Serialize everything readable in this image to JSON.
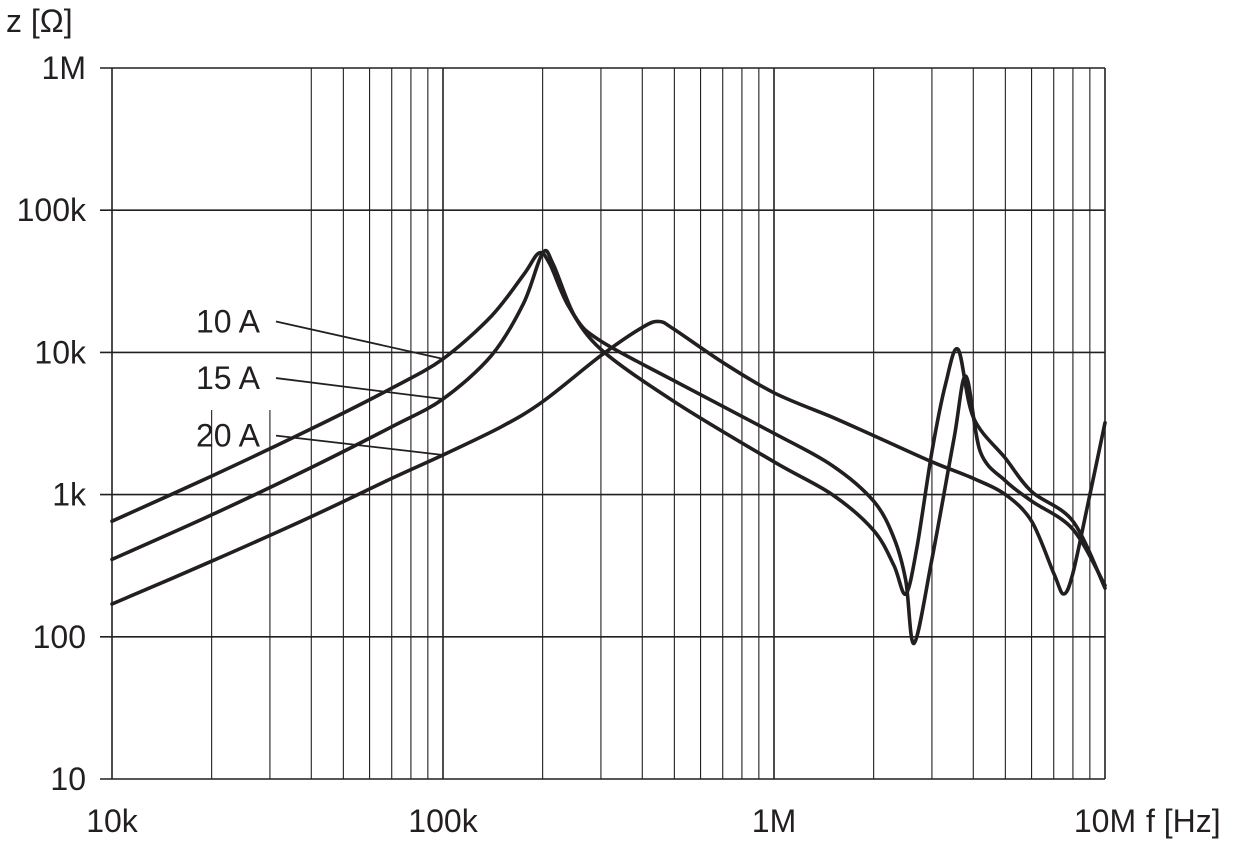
{
  "chart_data": {
    "type": "line",
    "xscale": "log",
    "yscale": "log",
    "xlabel": "f [Hz]",
    "ylabel": "z [Ω]",
    "xlim": [
      10000,
      10000000
    ],
    "ylim": [
      10,
      1000000
    ],
    "x_ticks": [
      {
        "value": 10000,
        "label": "10k"
      },
      {
        "value": 100000,
        "label": "100k"
      },
      {
        "value": 1000000,
        "label": "1M"
      },
      {
        "value": 10000000,
        "label": "10M"
      }
    ],
    "y_ticks": [
      {
        "value": 10,
        "label": "10"
      },
      {
        "value": 100,
        "label": "100"
      },
      {
        "value": 1000,
        "label": "1k"
      },
      {
        "value": 10000,
        "label": "10k"
      },
      {
        "value": 100000,
        "label": "100k"
      },
      {
        "value": 1000000,
        "label": "1M"
      }
    ],
    "grid": true,
    "series": [
      {
        "name": "10 A",
        "x": [
          10000,
          20000,
          40000,
          70000,
          100000,
          140000,
          175000,
          195000,
          210000,
          240000,
          300000,
          500000,
          1000000,
          1500000,
          2000000,
          2300000,
          2500000,
          2700000,
          3000000,
          3300000,
          3600000,
          4000000,
          5000000,
          6000000,
          8000000,
          10000000
        ],
        "y": [
          650,
          1350,
          2900,
          5600,
          9000,
          18000,
          35000,
          50000,
          42000,
          21000,
          10500,
          4500,
          1700,
          1000,
          560,
          320,
          200,
          420,
          2000,
          6000,
          10500,
          3500,
          1800,
          1050,
          650,
          220
        ]
      },
      {
        "name": "15 A",
        "x": [
          10000,
          20000,
          40000,
          70000,
          100000,
          140000,
          175000,
          200000,
          215000,
          250000,
          300000,
          500000,
          1000000,
          1500000,
          2000000,
          2300000,
          2500000,
          2650000,
          3000000,
          3500000,
          3800000,
          4200000,
          5000000,
          6000000,
          8000000,
          10000000
        ],
        "y": [
          350,
          720,
          1550,
          3000,
          4700,
          9500,
          22000,
          50000,
          42000,
          18000,
          12000,
          6300,
          2700,
          1600,
          900,
          500,
          250,
          90,
          350,
          2500,
          6800,
          2000,
          1250,
          900,
          570,
          230
        ]
      },
      {
        "name": "20 A",
        "x": [
          10000,
          20000,
          40000,
          70000,
          100000,
          150000,
          200000,
          300000,
          400000,
          450000,
          500000,
          700000,
          1000000,
          1500000,
          2000000,
          3000000,
          4000000,
          5000000,
          6000000,
          7000000,
          7500000,
          8000000,
          9000000,
          10000000
        ],
        "y": [
          170,
          340,
          700,
          1300,
          1900,
          3000,
          4500,
          9500,
          15000,
          16500,
          14500,
          8500,
          5200,
          3500,
          2600,
          1700,
          1300,
          1000,
          650,
          280,
          200,
          280,
          1000,
          3200
        ]
      }
    ],
    "legend": [
      {
        "label": "10 A",
        "text_x": 100000,
        "text_y": 16500,
        "target_x": 100000,
        "target_y": 9000
      },
      {
        "label": "15 A",
        "text_x": 100000,
        "text_y": 6600,
        "target_x": 100000,
        "target_y": 4700
      },
      {
        "label": "20 A",
        "text_x": 100000,
        "text_y": 2600,
        "target_x": 100000,
        "target_y": 1900
      }
    ],
    "colors": {
      "line": "#231f20",
      "grid": "#231f20",
      "background": "#ffffff"
    }
  }
}
